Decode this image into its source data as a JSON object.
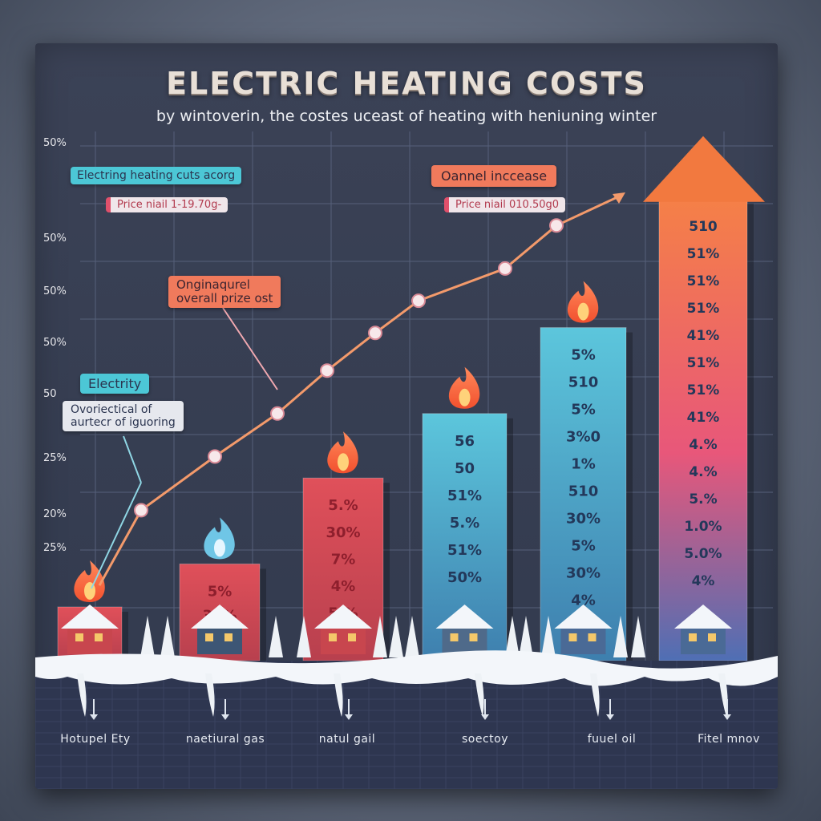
{
  "title": "ELECTRIC  HEATING COSTS",
  "subtitle": "by wintoverin, the costes uceast of heating with heniuning winter",
  "y_ticks": [
    "50%",
    "50%",
    "50%",
    "50%",
    "50",
    "25%",
    "20%",
    "25%"
  ],
  "callouts": {
    "electricity_heating": "Electring heating cuts acorg",
    "price_left": "Price niail 1-19.70g-",
    "annual_increase": "Oannel inccease",
    "price_right": "Price niail 010.50g0",
    "natural_price": "Onginaqurel\noverall prize ost",
    "electricity": "Electrity",
    "overall_electric": "Ovoriectical of\naurtecr of iguoring"
  },
  "colors": {
    "red_bar": "#d4515a",
    "teal_bar": "#57b4d0",
    "orange_arrow": "#f07a4f",
    "line": "#f39a6b",
    "flame": "#f46a3b"
  },
  "chart_data": {
    "type": "bar",
    "title": "ELECTRIC  HEATING COSTS",
    "subtitle": "by wintoverin, the costes uceast of heating with heniuning winter",
    "categories": [
      "Hotupel Ety",
      "naetiural gas",
      "natul gail",
      "soectoy",
      "fuuel oil",
      "Fitel mnov"
    ],
    "values": [
      10,
      18,
      34,
      46,
      62,
      86
    ],
    "ylim": [
      0,
      100
    ],
    "bar_labels": [
      [],
      [
        "5%",
        "30%"
      ],
      [
        "5.%",
        "30%",
        "7%",
        "4%",
        "5.%"
      ],
      [
        "56",
        "50",
        "51%",
        "5.%",
        "51%",
        "50%"
      ],
      [
        "5%",
        "510",
        "5%",
        "3%0",
        "1%",
        "510",
        "30%",
        "5%",
        "30%",
        "4%"
      ],
      [
        "510",
        "51%",
        "51%",
        "51%",
        "41%",
        "51%",
        "51%",
        "41%",
        "4.%",
        "4.%",
        "5.%",
        "1.0%",
        "5.0%",
        "4%"
      ]
    ],
    "trend_line": {
      "name": "Electricity",
      "values": [
        14,
        28,
        38,
        46,
        54,
        61,
        67,
        73,
        81
      ]
    },
    "annotations": [
      "Electrity",
      "Oannel inccease",
      "Onginaqurel overall prize ost"
    ]
  }
}
